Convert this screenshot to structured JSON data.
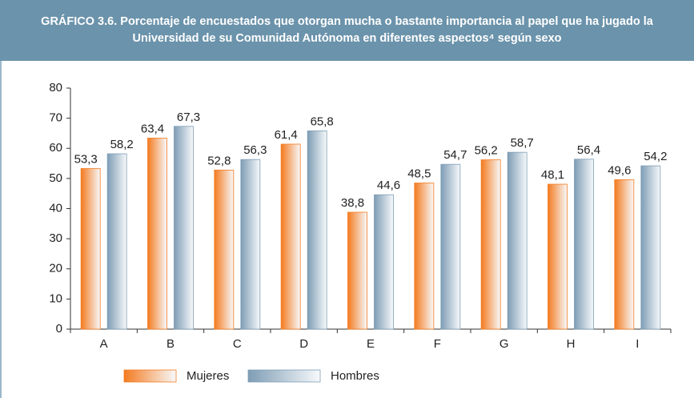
{
  "chart_data": {
    "type": "bar",
    "title": "GRÁFICO 3.6. Porcentaje de encuestados que otorgan mucha o bastante importancia al papel que ha jugado la Universidad de su Comunidad Autónoma en diferentes aspectos⁴ según sexo",
    "categories": [
      "A",
      "B",
      "C",
      "D",
      "E",
      "F",
      "G",
      "H",
      "I"
    ],
    "series": [
      {
        "name": "Mujeres",
        "color": "#f47b20",
        "values": [
          53.3,
          63.4,
          52.8,
          61.4,
          38.8,
          48.5,
          56.2,
          48.1,
          49.6
        ],
        "value_labels": [
          "53,3",
          "63,4",
          "52,8",
          "61,4",
          "38,8",
          "48,5",
          "56,2",
          "48,1",
          "49,6"
        ]
      },
      {
        "name": "Hombres",
        "color": "#7e9db5",
        "values": [
          58.2,
          67.3,
          56.3,
          65.8,
          44.6,
          54.7,
          58.7,
          56.4,
          54.2
        ],
        "value_labels": [
          "58,2",
          "67,3",
          "56,3",
          "65,8",
          "44,6",
          "54,7",
          "58,7",
          "56,4",
          "54,2"
        ]
      }
    ],
    "ylim": [
      0,
      80
    ],
    "yticks": [
      0,
      10,
      20,
      30,
      40,
      50,
      60,
      70,
      80
    ]
  }
}
